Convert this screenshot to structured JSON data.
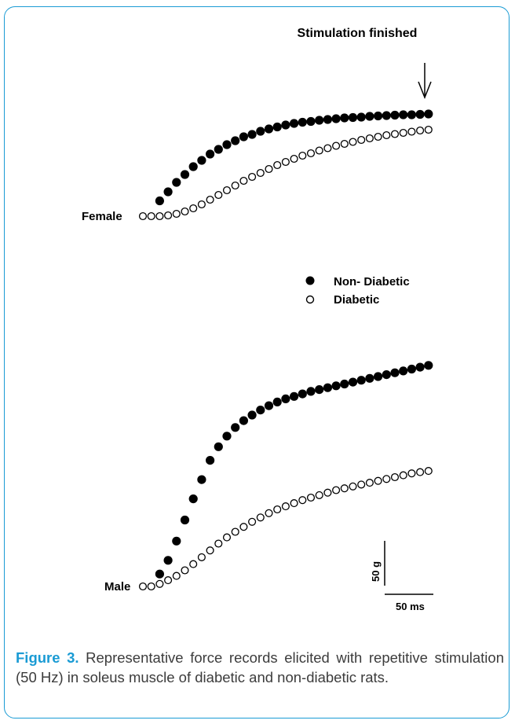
{
  "chart_data": {
    "type": "scatter",
    "annotation": "Stimulation finished",
    "legend": {
      "placement": "center-right",
      "entries": [
        {
          "name": "Non- Diabetic",
          "marker": "filled-circle"
        },
        {
          "name": "Diabetic",
          "marker": "open-circle"
        }
      ]
    },
    "scale_bars": {
      "force": "50 g",
      "time": "50 ms"
    },
    "panels": [
      {
        "name": "Female",
        "series": [
          {
            "name": "Non- Diabetic",
            "values": [
              0,
              0.8,
              1.95,
              3.1,
              4.3,
              5.3,
              6.3,
              7.1,
              7.9,
              8.5,
              9.1,
              9.6,
              10.1,
              10.4,
              10.8,
              11.1,
              11.35,
              11.6,
              11.8,
              11.95,
              12.05,
              12.2,
              12.3,
              12.4,
              12.5,
              12.55,
              12.6,
              12.7,
              12.75,
              12.8,
              12.85,
              12.9,
              12.9,
              12.95,
              13.0
            ]
          },
          {
            "name": "Diabetic",
            "values": [
              0,
              0,
              0,
              0.1,
              0.3,
              0.6,
              1.0,
              1.5,
              2.1,
              2.7,
              3.3,
              3.9,
              4.5,
              5.0,
              5.5,
              6.0,
              6.5,
              6.9,
              7.3,
              7.7,
              8.0,
              8.35,
              8.65,
              8.95,
              9.2,
              9.45,
              9.7,
              9.9,
              10.1,
              10.3,
              10.45,
              10.6,
              10.75,
              10.9,
              11.0
            ]
          }
        ]
      },
      {
        "name": "Male",
        "series": [
          {
            "name": "Non- Diabetic",
            "values": [
              0,
              0.5,
              2.0,
              4.2,
              7.3,
              10.7,
              14.1,
              17.2,
              20.3,
              22.5,
              24.2,
              25.6,
              26.7,
              27.6,
              28.4,
              29.1,
              29.7,
              30.2,
              30.6,
              31.0,
              31.4,
              31.7,
              32.0,
              32.3,
              32.6,
              32.9,
              33.2,
              33.5,
              33.8,
              34.1,
              34.4,
              34.7,
              35.0,
              35.3,
              35.6
            ]
          },
          {
            "name": "Diabetic",
            "values": [
              0,
              0,
              0.4,
              1.0,
              1.7,
              2.6,
              3.6,
              4.7,
              5.8,
              6.9,
              7.9,
              8.8,
              9.6,
              10.4,
              11.1,
              11.8,
              12.4,
              12.9,
              13.4,
              13.9,
              14.3,
              14.7,
              15.1,
              15.5,
              15.8,
              16.1,
              16.4,
              16.7,
              17.0,
              17.3,
              17.6,
              17.9,
              18.2,
              18.4,
              18.6
            ]
          }
        ]
      }
    ]
  },
  "caption": {
    "label": "Figure 3.",
    "text": " Representative force records elicited with repetitive stimulation (50 Hz) in soleus muscle of diabetic and non-diabetic rats."
  }
}
